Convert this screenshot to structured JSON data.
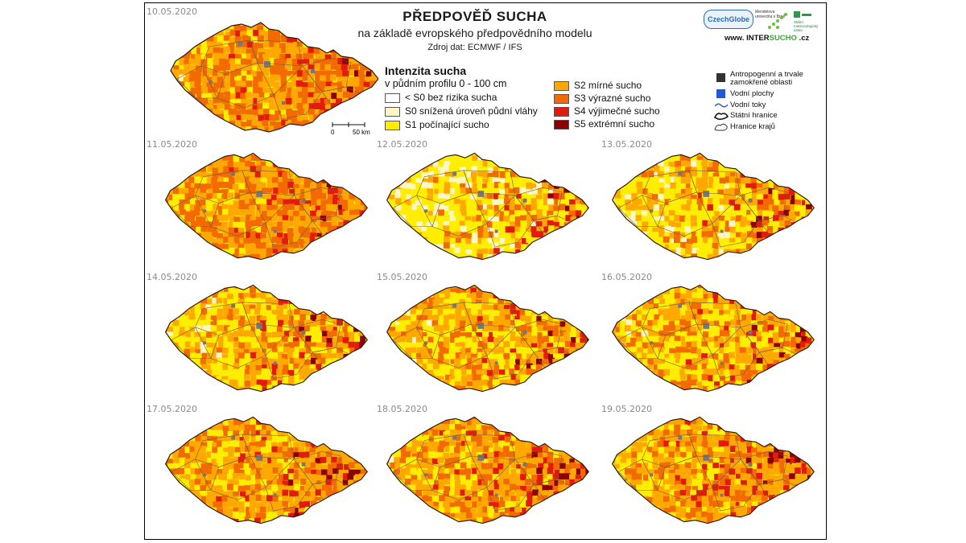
{
  "header": {
    "title": "PŘEDPOVĚĎ SUCHA",
    "subtitle": "na základě evropského předpovědního modelu",
    "source": "Zdroj dat: ECMWF / IFS"
  },
  "logos": {
    "czechglobe": "CzechGlobe",
    "mendel": "Mendelova univerzita v Brně",
    "chmi": "Státní meteorologický ústav",
    "intersucho_prefix": "www. INTER",
    "intersucho_mid": "SUCHO",
    "intersucho_suffix": " .cz"
  },
  "legend": {
    "title": "Intenzita sucha",
    "subtitle": "v půdním profilu 0 - 100 cm",
    "categories": [
      {
        "label": "< S0 bez rizika sucha",
        "color": "#ffffff"
      },
      {
        "label": "S0 snížená úroveň půdní vláhy",
        "color": "#fff6c6"
      },
      {
        "label": "S1 počínající sucho",
        "color": "#ffee00"
      },
      {
        "label": "S2 mírné sucho",
        "color": "#ffa800"
      },
      {
        "label": "S3 výrazné sucho",
        "color": "#f26a00"
      },
      {
        "label": "S4 výjimečné sucho",
        "color": "#e21b0c"
      },
      {
        "label": "S5 extrémní sucho",
        "color": "#8b0000"
      }
    ],
    "symbols": [
      {
        "label": "Antropogenní a trvale zamokřené oblasti",
        "icon": "gray-square"
      },
      {
        "label": "Vodní plochy",
        "icon": "blue-square"
      },
      {
        "label": "Vodní toky",
        "icon": "river-line"
      },
      {
        "label": "Státní hranice",
        "icon": "state-border"
      },
      {
        "label": "Hranice krajů",
        "icon": "region-border"
      }
    ]
  },
  "scalebar": {
    "zero": "0",
    "distance": "50 km"
  },
  "maps": [
    {
      "date": "10.05.2020",
      "mix": [
        0.0,
        0.04,
        0.18,
        0.3,
        0.3,
        0.12,
        0.06
      ]
    },
    {
      "date": "11.05.2020",
      "mix": [
        0.0,
        0.04,
        0.16,
        0.3,
        0.32,
        0.12,
        0.06
      ]
    },
    {
      "date": "12.05.2020",
      "mix": [
        0.06,
        0.22,
        0.34,
        0.18,
        0.1,
        0.06,
        0.04
      ]
    },
    {
      "date": "13.05.2020",
      "mix": [
        0.04,
        0.16,
        0.34,
        0.22,
        0.12,
        0.08,
        0.04
      ]
    },
    {
      "date": "14.05.2020",
      "mix": [
        0.02,
        0.1,
        0.34,
        0.26,
        0.14,
        0.08,
        0.06
      ]
    },
    {
      "date": "15.05.2020",
      "mix": [
        0.02,
        0.08,
        0.32,
        0.28,
        0.16,
        0.08,
        0.06
      ]
    },
    {
      "date": "16.05.2020",
      "mix": [
        0.02,
        0.08,
        0.3,
        0.28,
        0.18,
        0.08,
        0.06
      ]
    },
    {
      "date": "17.05.2020",
      "mix": [
        0.0,
        0.04,
        0.26,
        0.32,
        0.2,
        0.1,
        0.08
      ]
    },
    {
      "date": "18.05.2020",
      "mix": [
        0.0,
        0.04,
        0.24,
        0.32,
        0.22,
        0.1,
        0.08
      ]
    },
    {
      "date": "19.05.2020",
      "mix": [
        0.0,
        0.04,
        0.24,
        0.32,
        0.22,
        0.1,
        0.08
      ]
    }
  ]
}
